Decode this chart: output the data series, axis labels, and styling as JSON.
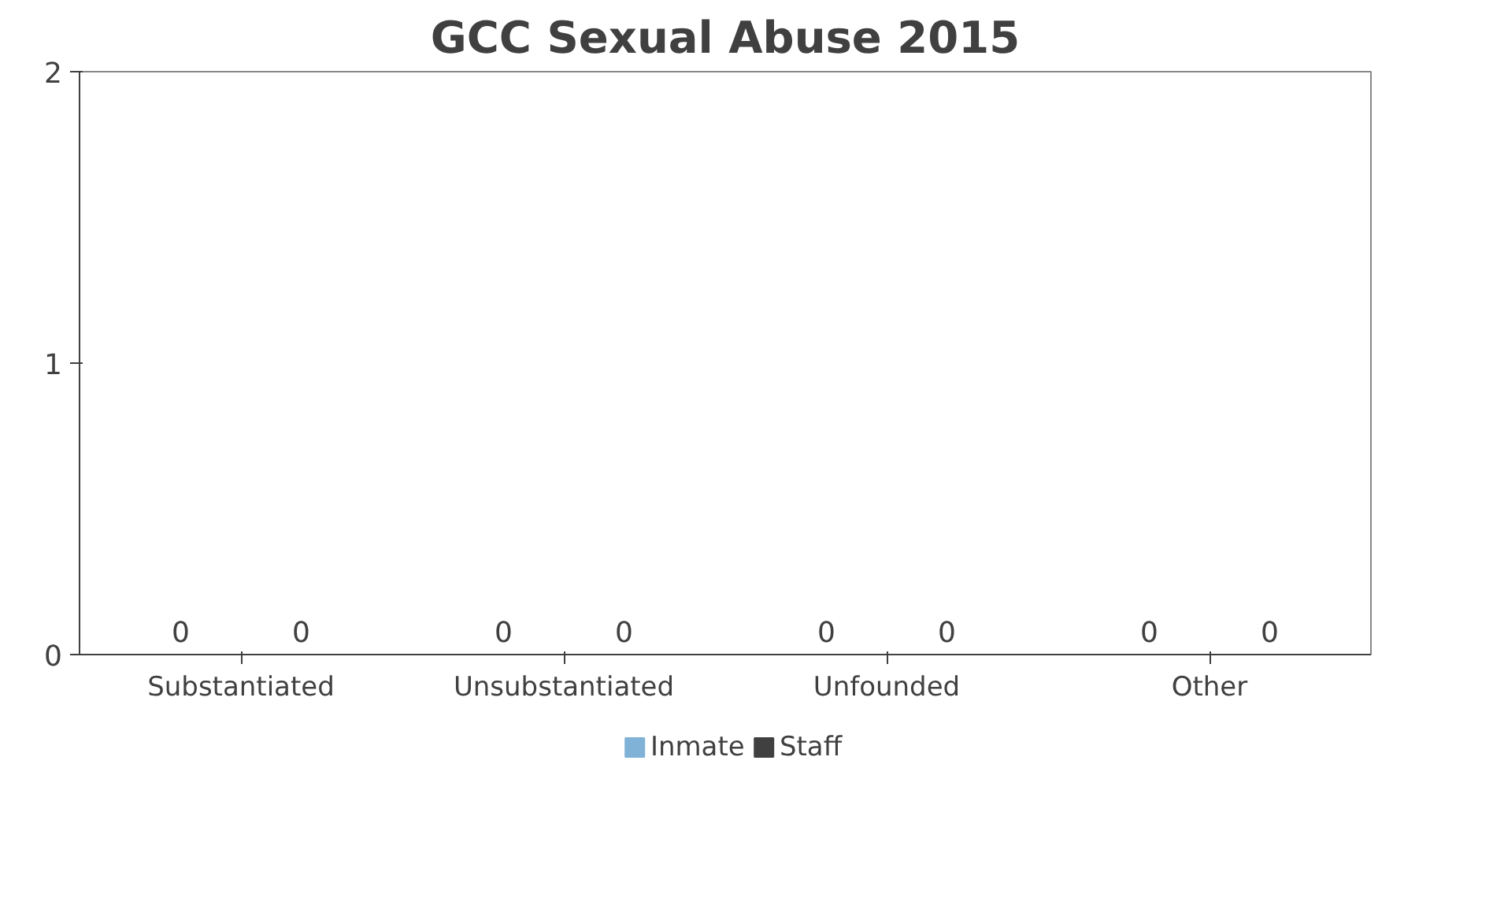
{
  "chart_data": {
    "type": "bar",
    "title": "GCC Sexual Abuse 2015",
    "categories": [
      "Substantiated",
      "Unsubstantiated",
      "Unfounded",
      "Other"
    ],
    "series": [
      {
        "name": "Inmate",
        "color": "#7fb2d6",
        "values": [
          0,
          0,
          0,
          0
        ]
      },
      {
        "name": "Staff",
        "color": "#404040",
        "values": [
          0,
          0,
          0,
          0
        ]
      }
    ],
    "ylim": [
      0,
      2
    ],
    "yticks": [
      0,
      1,
      2
    ],
    "grid": false,
    "legend": "bottom",
    "data_labels": true
  }
}
